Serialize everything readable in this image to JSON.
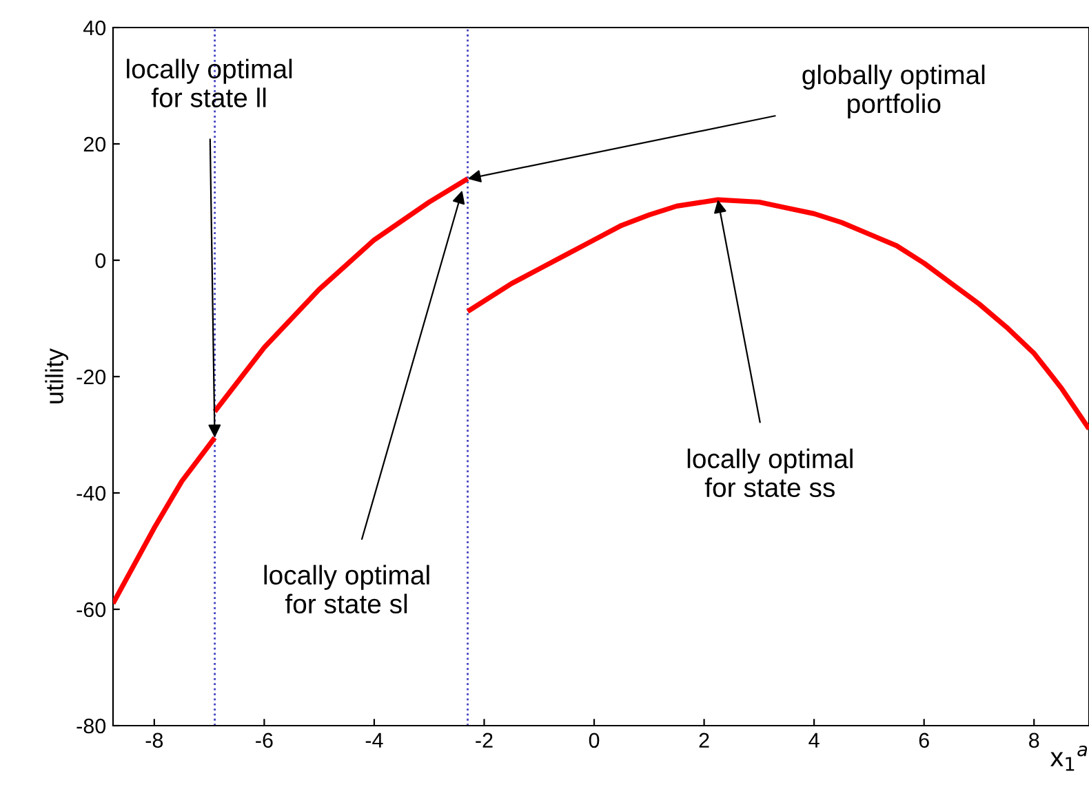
{
  "chart_data": {
    "type": "line",
    "xlabel": "x$_{1}$$^{a}$",
    "ylabel": "utility",
    "xlim": [
      -8.75,
      9
    ],
    "ylim": [
      -80,
      40
    ],
    "xticks": [
      -8,
      -6,
      -4,
      -2,
      0,
      2,
      4,
      6,
      8
    ],
    "yticks": [
      -80,
      -60,
      -40,
      -20,
      0,
      20,
      40
    ],
    "grid": false,
    "legend": false,
    "line_style": "solid",
    "marker": "none",
    "series": [
      {
        "color": "#ff0000",
        "x": [
          -8.75,
          -8,
          -7.5,
          -6.9
        ],
        "values": [
          -59,
          -46,
          -38,
          -30.5
        ]
      },
      {
        "color": "#ff0000",
        "x": [
          -6.9,
          -6,
          -5,
          -4,
          -3,
          -2.3
        ],
        "values": [
          -26,
          -15,
          -5,
          3.5,
          10,
          14
        ]
      },
      {
        "color": "#ff0000",
        "x": [
          -2.3,
          -1.5,
          -1,
          -0.5,
          0,
          0.5,
          1,
          1.5,
          2.25,
          3,
          3.5,
          4,
          4.5,
          5,
          5.5,
          6,
          6.5,
          7,
          7.5,
          8,
          8.5,
          9
        ],
        "values": [
          -8.8,
          -4,
          -1.5,
          1,
          3.5,
          6,
          7.8,
          9.3,
          10.4,
          10,
          9,
          8,
          6.5,
          4.5,
          2.5,
          -0.5,
          -4,
          -7.5,
          -11.5,
          -16,
          -22,
          -29
        ]
      }
    ],
    "ref_lines": [
      {
        "axis": "x",
        "value": -6.9,
        "color": "#4040c0",
        "line_style": "dotted"
      },
      {
        "axis": "x",
        "value": -2.3,
        "color": "#4040c0",
        "line_style": "dotted"
      }
    ],
    "annotations": [
      {
        "text": "locally optimal\nfor state ll",
        "x": -6.9,
        "y": -30.5
      },
      {
        "text": "globally optimal\nportfolio",
        "x": -2.3,
        "y": 14
      },
      {
        "text": "locally optimal\nfor state sl",
        "x": -2.4,
        "y": 12
      },
      {
        "text": "locally optimal\nfor state ss",
        "x": 2.25,
        "y": 10.4
      }
    ]
  }
}
